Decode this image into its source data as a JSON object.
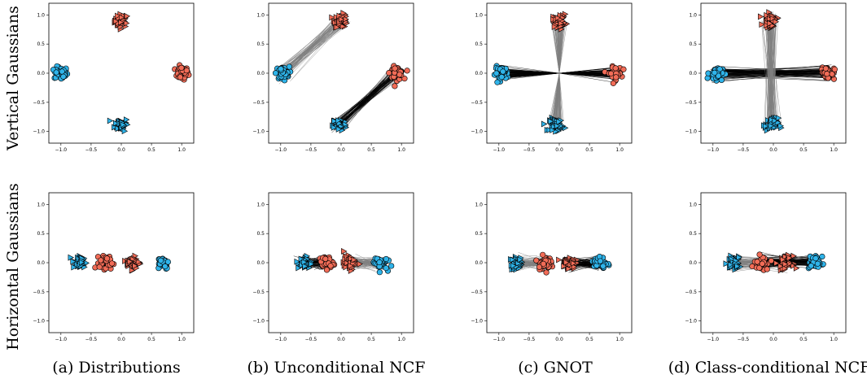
{
  "figure": {
    "row_labels": [
      "Vertical Gaussians",
      "Horizontal Gaussians"
    ],
    "captions": [
      "(a) Distributions",
      "(b) Unconditional NCF",
      "(c) GNOT",
      "(d) Class-conditional NCF"
    ]
  },
  "colors": {
    "red": "#f26c57",
    "blue": "#2fb4ea",
    "link_dark": "#000000",
    "link_gray": "#808080"
  },
  "chart_data": {
    "type": "scatter",
    "xlim": [
      -1.2,
      1.2
    ],
    "ylim": [
      -1.2,
      1.2
    ],
    "xticks": [
      -1.0,
      -0.5,
      0.0,
      0.5,
      1.0
    ],
    "yticks": [
      -1.0,
      -0.5,
      0.0,
      0.5,
      1.0
    ],
    "tick_labels": [
      "−1.0",
      "−0.5",
      "0.0",
      "0.5",
      "1.0"
    ],
    "grid": false,
    "legend": "none",
    "panels": [
      {
        "row": 0,
        "col": 0,
        "clusters": [
          {
            "color": "red",
            "marker": "triangle",
            "center": [
              0.0,
              0.9
            ]
          },
          {
            "color": "red",
            "marker": "circle",
            "center": [
              1.0,
              0.0
            ]
          },
          {
            "color": "blue",
            "marker": "circle",
            "center": [
              -1.0,
              0.0
            ]
          },
          {
            "color": "blue",
            "marker": "triangle",
            "center": [
              0.0,
              -0.88
            ]
          }
        ],
        "links": []
      },
      {
        "row": 0,
        "col": 1,
        "clusters": [
          {
            "color": "red",
            "marker": "triangle",
            "center": [
              0.0,
              0.9
            ]
          },
          {
            "color": "red",
            "marker": "circle",
            "center": [
              0.92,
              0.0
            ]
          },
          {
            "color": "blue",
            "marker": "circle",
            "center": [
              -0.97,
              0.0
            ]
          },
          {
            "color": "blue",
            "marker": "triangle",
            "center": [
              -0.03,
              -0.88
            ]
          }
        ],
        "links": [
          {
            "from": [
              -0.97,
              0.0
            ],
            "to": [
              0.0,
              0.9
            ],
            "color": "link_gray"
          },
          {
            "from": [
              -0.03,
              -0.88
            ],
            "to": [
              0.92,
              0.0
            ],
            "color": "link_dark"
          }
        ]
      },
      {
        "row": 0,
        "col": 2,
        "clusters": [
          {
            "color": "red",
            "marker": "triangle",
            "center": [
              0.0,
              0.9
            ]
          },
          {
            "color": "red",
            "marker": "circle",
            "center": [
              0.92,
              0.0
            ]
          },
          {
            "color": "blue",
            "marker": "circle",
            "center": [
              -0.95,
              0.0
            ]
          },
          {
            "color": "blue",
            "marker": "triangle",
            "center": [
              -0.05,
              -0.88
            ]
          }
        ],
        "links": [
          {
            "from": [
              -0.95,
              0.0
            ],
            "to": [
              0.92,
              0.0
            ],
            "color": "link_dark",
            "pinch": true
          },
          {
            "from": [
              -0.05,
              -0.88
            ],
            "to": [
              0.0,
              0.9
            ],
            "color": "link_gray",
            "pinch": true
          }
        ]
      },
      {
        "row": 0,
        "col": 3,
        "clusters": [
          {
            "color": "red",
            "marker": "triangle",
            "center": [
              -0.05,
              0.9
            ]
          },
          {
            "color": "red",
            "marker": "circle",
            "center": [
              0.9,
              0.0
            ]
          },
          {
            "color": "blue",
            "marker": "circle",
            "center": [
              -0.95,
              0.0
            ]
          },
          {
            "color": "blue",
            "marker": "triangle",
            "center": [
              -0.03,
              -0.88
            ]
          }
        ],
        "links": [
          {
            "from": [
              -0.95,
              0.0
            ],
            "to": [
              0.9,
              0.0
            ],
            "color": "link_dark"
          },
          {
            "from": [
              -0.03,
              -0.88
            ],
            "to": [
              -0.05,
              0.9
            ],
            "color": "link_gray"
          }
        ]
      },
      {
        "row": 1,
        "col": 0,
        "clusters": [
          {
            "color": "blue",
            "marker": "triangle",
            "center": [
              -0.7,
              0.0
            ]
          },
          {
            "color": "red",
            "marker": "circle",
            "center": [
              -0.25,
              0.0
            ]
          },
          {
            "color": "red",
            "marker": "triangle",
            "center": [
              0.2,
              0.0
            ]
          },
          {
            "color": "blue",
            "marker": "circle",
            "center": [
              0.68,
              0.0
            ]
          }
        ],
        "links": []
      },
      {
        "row": 1,
        "col": 1,
        "clusters": [
          {
            "color": "blue",
            "marker": "triangle",
            "center": [
              -0.6,
              0.0
            ]
          },
          {
            "color": "red",
            "marker": "circle",
            "center": [
              -0.25,
              0.0
            ]
          },
          {
            "color": "red",
            "marker": "triangle",
            "center": [
              0.15,
              0.0
            ]
          },
          {
            "color": "blue",
            "marker": "circle",
            "center": [
              0.65,
              0.0
            ]
          }
        ],
        "links": [
          {
            "from": [
              -0.6,
              0.0
            ],
            "to": [
              -0.25,
              0.0
            ],
            "color": "link_dark"
          },
          {
            "from": [
              0.15,
              0.0
            ],
            "to": [
              0.65,
              0.0
            ],
            "color": "link_gray"
          }
        ]
      },
      {
        "row": 1,
        "col": 2,
        "clusters": [
          {
            "color": "blue",
            "marker": "triangle",
            "center": [
              -0.7,
              -0.02
            ]
          },
          {
            "color": "red",
            "marker": "circle",
            "center": [
              -0.25,
              0.0
            ]
          },
          {
            "color": "red",
            "marker": "triangle",
            "center": [
              0.15,
              0.0
            ]
          },
          {
            "color": "blue",
            "marker": "circle",
            "center": [
              0.68,
              -0.01
            ]
          }
        ],
        "links": [
          {
            "from": [
              -0.7,
              -0.02
            ],
            "to": [
              -0.25,
              0.0
            ],
            "color": "link_gray"
          },
          {
            "from": [
              0.15,
              0.0
            ],
            "to": [
              0.68,
              -0.01
            ],
            "color": "link_dark"
          }
        ]
      },
      {
        "row": 1,
        "col": 3,
        "clusters": [
          {
            "color": "blue",
            "marker": "triangle",
            "center": [
              -0.65,
              0.0
            ]
          },
          {
            "color": "red",
            "marker": "circle",
            "center": [
              -0.2,
              0.0
            ]
          },
          {
            "color": "red",
            "marker": "triangle",
            "center": [
              0.2,
              0.0
            ]
          },
          {
            "color": "blue",
            "marker": "circle",
            "center": [
              0.7,
              0.0
            ]
          }
        ],
        "links": [
          {
            "from": [
              -0.65,
              0.0
            ],
            "to": [
              0.2,
              0.0
            ],
            "color": "link_gray"
          },
          {
            "from": [
              -0.2,
              0.0
            ],
            "to": [
              0.7,
              0.0
            ],
            "color": "link_dark"
          }
        ]
      }
    ]
  }
}
